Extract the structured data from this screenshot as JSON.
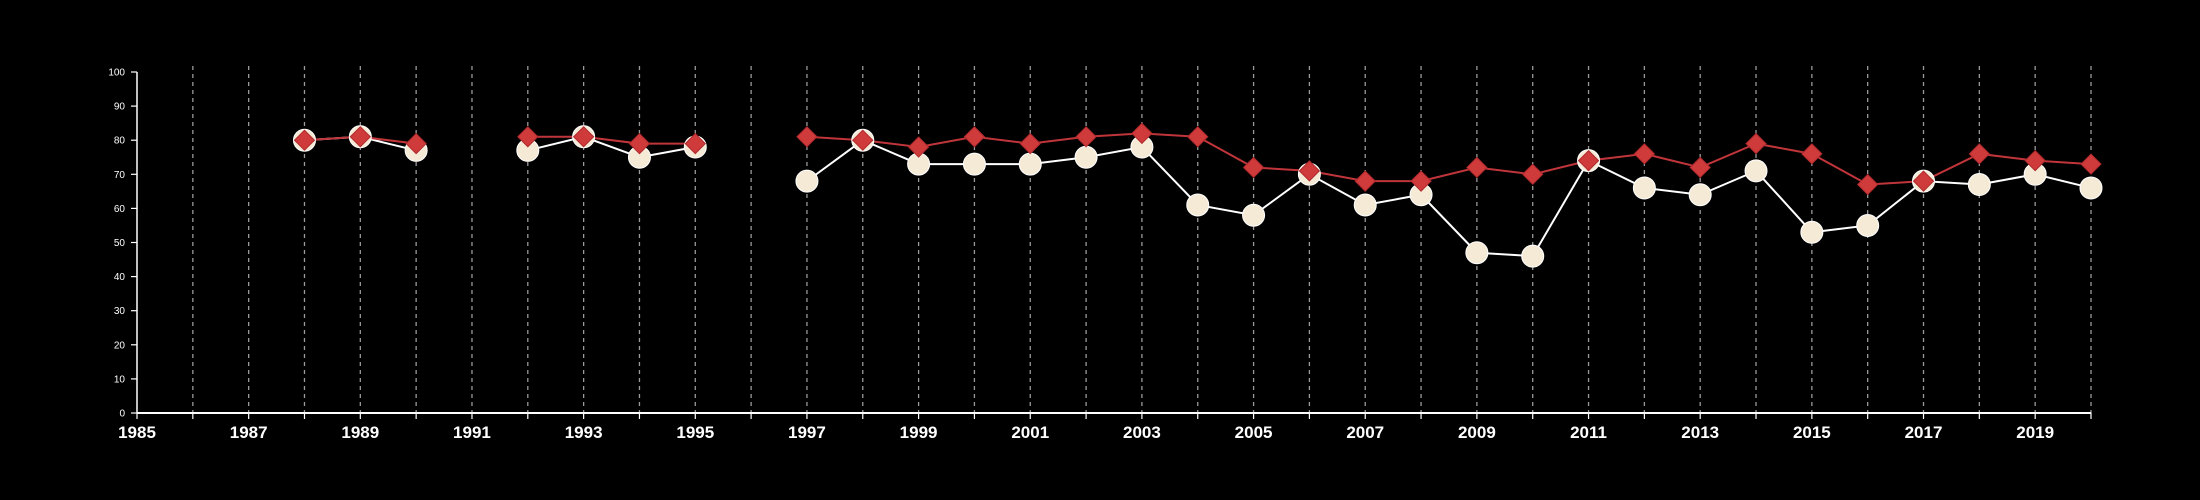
{
  "chart_data": {
    "type": "line",
    "title": "",
    "xlabel": "",
    "ylabel": "",
    "xlim": [
      1985,
      2020
    ],
    "ylim": [
      0,
      100
    ],
    "y_ticks": [
      0,
      10,
      20,
      30,
      40,
      50,
      60,
      70,
      80,
      90,
      100
    ],
    "x_tick_labels": [
      1985,
      1987,
      1989,
      1991,
      1993,
      1995,
      1997,
      1999,
      2001,
      2003,
      2005,
      2007,
      2009,
      2011,
      2013,
      2015,
      2017,
      2019
    ],
    "vertical_gridlines": "dashed, every year",
    "legend": "none",
    "series": [
      {
        "marker": "diamond",
        "color": "#cf3a3a",
        "line_color": "#c0353a",
        "points": [
          [
            1988,
            80
          ],
          [
            1989,
            81
          ],
          [
            1990,
            79
          ],
          [
            1992,
            81
          ],
          [
            1993,
            81
          ],
          [
            1994,
            79
          ],
          [
            1995,
            79
          ],
          [
            1997,
            81
          ],
          [
            1998,
            80
          ],
          [
            1999,
            78
          ],
          [
            2000,
            81
          ],
          [
            2001,
            79
          ],
          [
            2002,
            81
          ],
          [
            2003,
            82
          ],
          [
            2004,
            81
          ],
          [
            2005,
            72
          ],
          [
            2006,
            71
          ],
          [
            2007,
            68
          ],
          [
            2008,
            68
          ],
          [
            2009,
            72
          ],
          [
            2010,
            70
          ],
          [
            2011,
            74
          ],
          [
            2012,
            76
          ],
          [
            2013,
            72
          ],
          [
            2014,
            79
          ],
          [
            2015,
            76
          ],
          [
            2016,
            67
          ],
          [
            2017,
            68
          ],
          [
            2018,
            76
          ],
          [
            2019,
            74
          ],
          [
            2020,
            73
          ]
        ]
      },
      {
        "marker": "circle",
        "color": "#f5ead6",
        "line_color": "#ffffff",
        "points": [
          [
            1988,
            80
          ],
          [
            1989,
            81
          ],
          [
            1990,
            77
          ],
          [
            1992,
            77
          ],
          [
            1993,
            81
          ],
          [
            1994,
            75
          ],
          [
            1995,
            78
          ],
          [
            1997,
            68
          ],
          [
            1998,
            80
          ],
          [
            1999,
            73
          ],
          [
            2000,
            73
          ],
          [
            2001,
            73
          ],
          [
            2002,
            75
          ],
          [
            2003,
            78
          ],
          [
            2004,
            61
          ],
          [
            2005,
            58
          ],
          [
            2006,
            70
          ],
          [
            2007,
            61
          ],
          [
            2008,
            64
          ],
          [
            2009,
            47
          ],
          [
            2010,
            46
          ],
          [
            2011,
            74
          ],
          [
            2012,
            66
          ],
          [
            2013,
            64
          ],
          [
            2014,
            71
          ],
          [
            2015,
            53
          ],
          [
            2016,
            55
          ],
          [
            2017,
            68
          ],
          [
            2018,
            67
          ],
          [
            2019,
            70
          ],
          [
            2020,
            66
          ]
        ]
      }
    ]
  }
}
